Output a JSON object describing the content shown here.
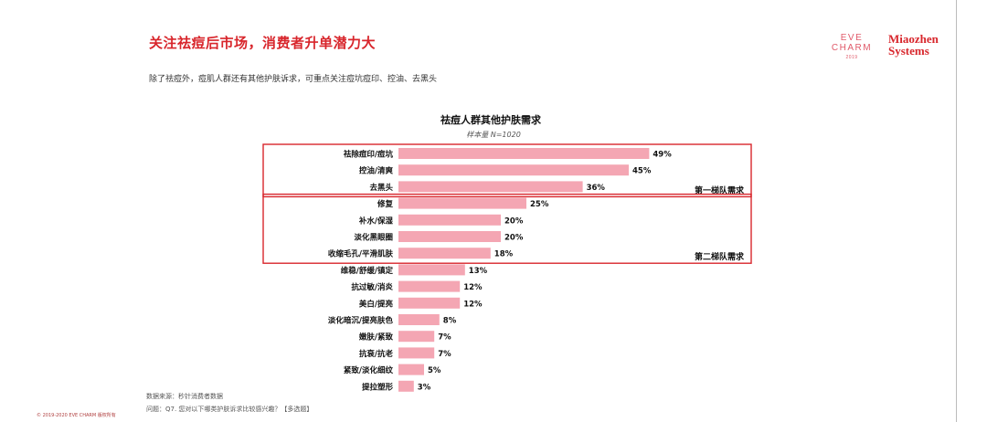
{
  "header": {
    "title": "关注祛痘后市场，消费者升单潜力大",
    "subtitle": "除了祛痘外，痘肌人群还有其他护肤诉求，可重点关注痘坑痘印、控油、去黑头"
  },
  "logos": {
    "evecharm_line1": "EVE",
    "evecharm_line2": "CHARM",
    "evecharm_small": "2019",
    "miaozhen_line1": "Miaozhen",
    "miaozhen_line2": "Systems"
  },
  "chart_data": {
    "type": "bar",
    "orientation": "horizontal",
    "title": "祛痘人群其他护肤需求",
    "sample_note": "样本量 N=1020",
    "categories": [
      "祛除痘印/痘坑",
      "控油/清爽",
      "去黑头",
      "修复",
      "补水/保湿",
      "淡化黑眼圈",
      "收缩毛孔/平滑肌肤",
      "维稳/舒缓/镇定",
      "抗过敏/消炎",
      "美白/提亮",
      "淡化暗沉/提亮肤色",
      "嫩肤/紧致",
      "抗衰/抗老",
      "紧致/淡化细纹",
      "提拉塑形"
    ],
    "values": [
      49,
      45,
      36,
      25,
      20,
      20,
      18,
      13,
      12,
      12,
      8,
      7,
      7,
      5,
      3
    ],
    "value_labels": [
      "49%",
      "45%",
      "36%",
      "25%",
      "20%",
      "20%",
      "18%",
      "13%",
      "12%",
      "12%",
      "8%",
      "7%",
      "7%",
      "5%",
      "3%"
    ],
    "unit": "%",
    "bar_color": "#f4a6b3",
    "highlight_color": "#d8262c",
    "groups": [
      {
        "label": "第一梯队需求",
        "from": 0,
        "to": 2
      },
      {
        "label": "第二梯队需求",
        "from": 3,
        "to": 6
      }
    ],
    "xlim": [
      0,
      50
    ],
    "grid": false,
    "legend": "none"
  },
  "footer": {
    "source": "数据来源：秒针消费者数据",
    "question": "问题：Q7. 您对以下哪类护肤诉求比较感兴趣？【多选题】",
    "copyright": "© 2019-2020 EVE CHARM 版权所有"
  }
}
